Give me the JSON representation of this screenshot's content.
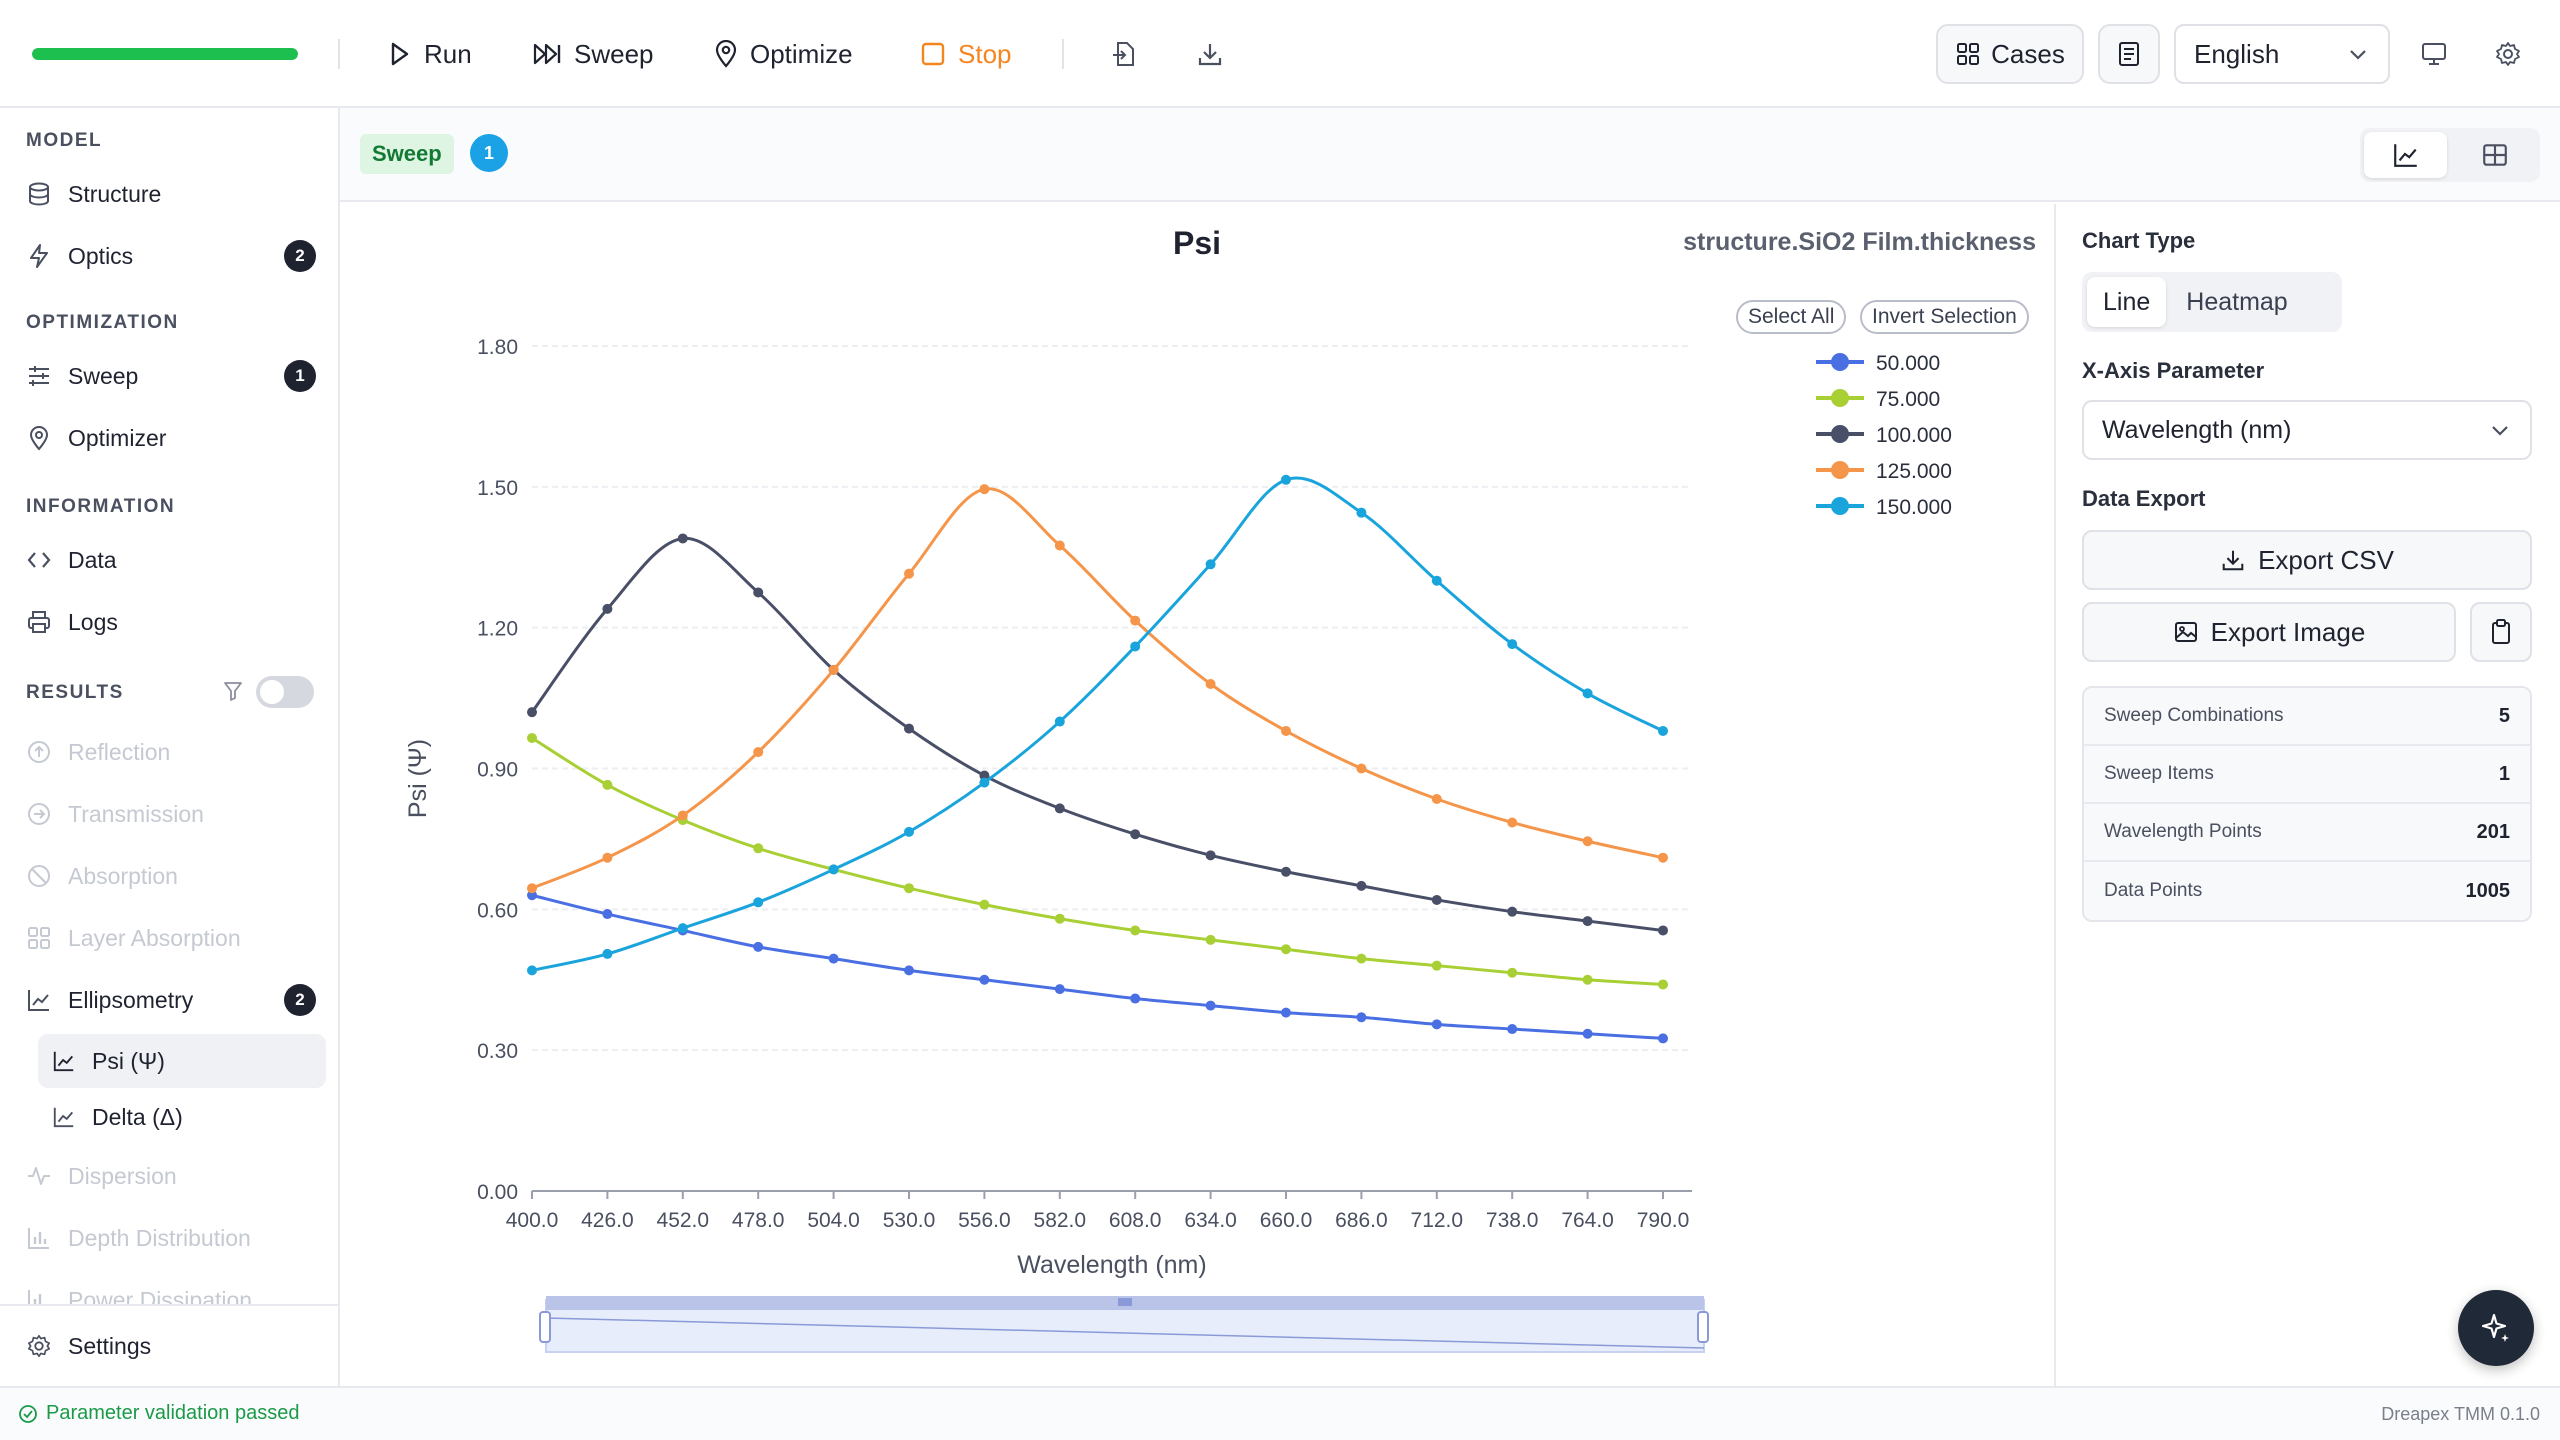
{
  "toolbar": {
    "progress": 1.0,
    "run_label": "Run",
    "sweep_label": "Sweep",
    "optimize_label": "Optimize",
    "stop_label": "Stop",
    "cases_label": "Cases",
    "language": "English"
  },
  "sidebar": {
    "sections": {
      "model": "MODEL",
      "optimization": "OPTIMIZATION",
      "information": "INFORMATION",
      "results": "RESULTS"
    },
    "model_items": [
      {
        "label": "Structure",
        "icon": "database-icon"
      },
      {
        "label": "Optics",
        "icon": "lightning-icon",
        "badge": "2"
      }
    ],
    "optimization_items": [
      {
        "label": "Sweep",
        "icon": "sliders-icon",
        "badge": "1"
      },
      {
        "label": "Optimizer",
        "icon": "map-pin-icon"
      }
    ],
    "information_items": [
      {
        "label": "Data",
        "icon": "code-icon"
      },
      {
        "label": "Logs",
        "icon": "printer-icon"
      }
    ],
    "result_items": [
      {
        "label": "Reflection",
        "icon": "arrow-up-circle-icon",
        "disabled": true
      },
      {
        "label": "Transmission",
        "icon": "arrow-right-circle-icon",
        "disabled": true
      },
      {
        "label": "Absorption",
        "icon": "ban-icon",
        "disabled": true
      },
      {
        "label": "Layer Absorption",
        "icon": "layout-icon",
        "disabled": true
      },
      {
        "label": "Ellipsometry",
        "icon": "line-chart-icon",
        "badge": "2"
      },
      {
        "label": "Psi (Ψ)",
        "icon": "line-chart-icon",
        "active": true
      },
      {
        "label": "Delta (Δ)",
        "icon": "line-chart-icon"
      },
      {
        "label": "Dispersion",
        "icon": "activity-icon",
        "disabled": true
      },
      {
        "label": "Depth Distribution",
        "icon": "bar-chart-icon",
        "disabled": true
      },
      {
        "label": "Power Dissipation",
        "icon": "bar-chart-icon",
        "disabled": true
      }
    ],
    "settings_label": "Settings"
  },
  "subheader": {
    "tag": "Sweep",
    "count": "1"
  },
  "chart": {
    "select_all": "Select All",
    "invert_selection": "Invert Selection"
  },
  "chart_data": {
    "type": "line",
    "title": "Psi",
    "subtitle": "structure.SiO2 Film.thickness",
    "xlabel": "Wavelength (nm)",
    "ylabel": "Psi (Ψ)",
    "xlim": [
      400,
      800
    ],
    "ylim": [
      0,
      1.8
    ],
    "yticks": [
      "0.00",
      "0.30",
      "0.60",
      "0.90",
      "1.20",
      "1.50",
      "1.80"
    ],
    "xticks": [
      "400.0",
      "426.0",
      "452.0",
      "478.0",
      "504.0",
      "530.0",
      "556.0",
      "582.0",
      "608.0",
      "634.0",
      "660.0",
      "686.0",
      "712.0",
      "738.0",
      "764.0",
      "790.0"
    ],
    "grid": true,
    "legend_position": "top-right",
    "x": [
      400,
      426,
      452,
      478,
      504,
      530,
      556,
      582,
      608,
      634,
      660,
      686,
      712,
      738,
      764,
      790
    ],
    "series": [
      {
        "name": "50.000",
        "color": "#4a6fe3",
        "values": [
          0.63,
          0.59,
          0.555,
          0.52,
          0.495,
          0.47,
          0.45,
          0.43,
          0.41,
          0.395,
          0.38,
          0.37,
          0.355,
          0.345,
          0.335,
          0.325
        ]
      },
      {
        "name": "75.000",
        "color": "#a8cf34",
        "values": [
          0.965,
          0.865,
          0.79,
          0.73,
          0.685,
          0.645,
          0.61,
          0.58,
          0.555,
          0.535,
          0.515,
          0.495,
          0.48,
          0.465,
          0.45,
          0.44
        ]
      },
      {
        "name": "100.000",
        "color": "#4a4f68",
        "values": [
          1.02,
          1.24,
          1.39,
          1.275,
          1.11,
          0.985,
          0.885,
          0.815,
          0.76,
          0.715,
          0.68,
          0.65,
          0.62,
          0.595,
          0.575,
          0.555
        ]
      },
      {
        "name": "125.000",
        "color": "#f5954a",
        "values": [
          0.645,
          0.71,
          0.8,
          0.935,
          1.11,
          1.315,
          1.495,
          1.375,
          1.215,
          1.08,
          0.98,
          0.9,
          0.835,
          0.785,
          0.745,
          0.71
        ]
      },
      {
        "name": "150.000",
        "color": "#1aa4dc",
        "values": [
          0.47,
          0.505,
          0.56,
          0.615,
          0.685,
          0.765,
          0.87,
          1.0,
          1.16,
          1.335,
          1.515,
          1.445,
          1.3,
          1.165,
          1.06,
          0.98
        ]
      }
    ]
  },
  "right_panel": {
    "chart_type_label": "Chart Type",
    "chart_types": [
      "Line",
      "Heatmap"
    ],
    "chart_type_selected": "Line",
    "x_axis_label": "X-Axis Parameter",
    "x_axis_value": "Wavelength (nm)",
    "data_export_label": "Data Export",
    "export_csv": "Export CSV",
    "export_image": "Export Image",
    "stats": [
      {
        "label": "Sweep Combinations",
        "value": "5"
      },
      {
        "label": "Sweep Items",
        "value": "1"
      },
      {
        "label": "Wavelength Points",
        "value": "201"
      },
      {
        "label": "Data Points",
        "value": "1005"
      }
    ]
  },
  "statusbar": {
    "message": "Parameter validation passed",
    "version": "Dreapex TMM 0.1.0"
  },
  "colors": {
    "accent_green": "#1dbf4f",
    "stop_orange": "#f5851f",
    "count_blue": "#1aa1e6"
  }
}
